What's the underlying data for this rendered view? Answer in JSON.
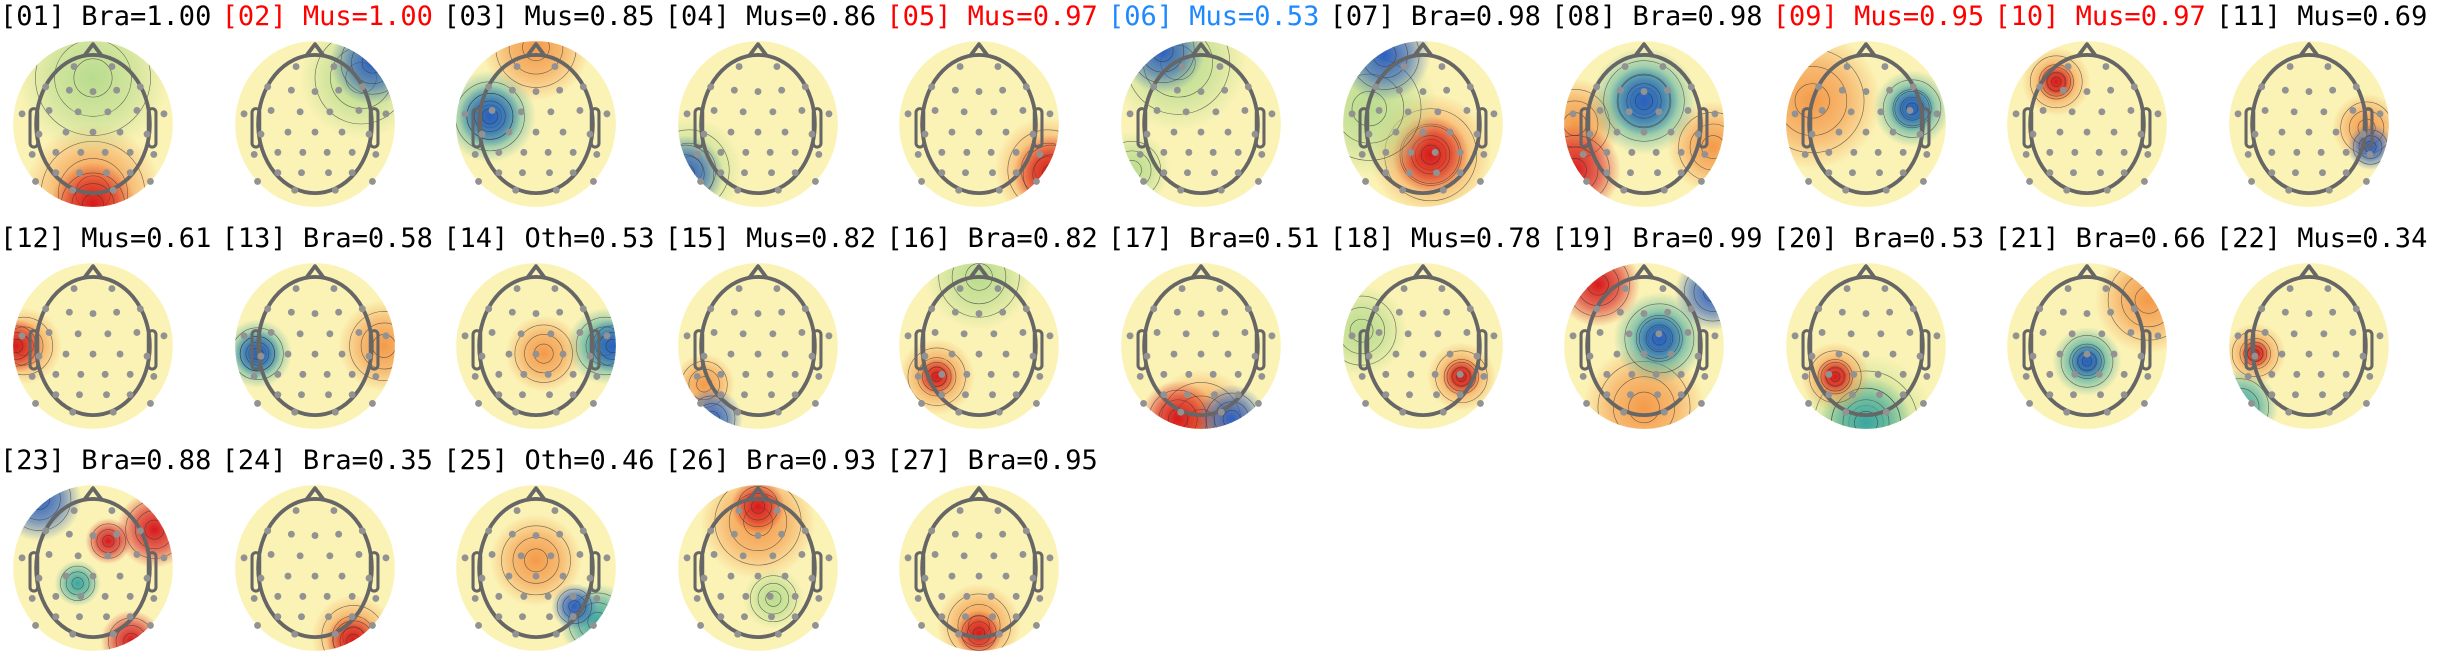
{
  "default_color": "#000000",
  "components": [
    {
      "label": "[01] Bra=1.00",
      "color": "#000000"
    },
    {
      "label": "[02] Mus=1.00",
      "color": "#ff0000"
    },
    {
      "label": "[03] Mus=0.85",
      "color": "#000000"
    },
    {
      "label": "[04] Mus=0.86",
      "color": "#000000"
    },
    {
      "label": "[05] Mus=0.97",
      "color": "#ff0000"
    },
    {
      "label": "[06] Mus=0.53",
      "color": "#1e88ff"
    },
    {
      "label": "[07] Bra=0.98",
      "color": "#000000"
    },
    {
      "label": "[08] Bra=0.98",
      "color": "#000000"
    },
    {
      "label": "[09] Mus=0.95",
      "color": "#ff0000"
    },
    {
      "label": "[10] Mus=0.97",
      "color": "#ff0000"
    },
    {
      "label": "[11] Mus=0.69",
      "color": "#000000"
    },
    {
      "label": "[12] Mus=0.61",
      "color": "#000000"
    },
    {
      "label": "[13] Bra=0.58",
      "color": "#000000"
    },
    {
      "label": "[14] Oth=0.53",
      "color": "#000000"
    },
    {
      "label": "[15] Mus=0.82",
      "color": "#000000"
    },
    {
      "label": "[16] Bra=0.82",
      "color": "#000000"
    },
    {
      "label": "[17] Bra=0.51",
      "color": "#000000"
    },
    {
      "label": "[18] Mus=0.78",
      "color": "#000000"
    },
    {
      "label": "[19] Bra=0.99",
      "color": "#000000"
    },
    {
      "label": "[20] Bra=0.53",
      "color": "#000000"
    },
    {
      "label": "[21] Bra=0.66",
      "color": "#000000"
    },
    {
      "label": "[22] Mus=0.34",
      "color": "#000000"
    },
    {
      "label": "[23] Bra=0.88",
      "color": "#000000"
    },
    {
      "label": "[24] Bra=0.35",
      "color": "#000000"
    },
    {
      "label": "[25] Oth=0.46",
      "color": "#000000"
    },
    {
      "label": "[26] Bra=0.93",
      "color": "#000000"
    },
    {
      "label": "[27] Bra=0.95",
      "color": "#000000"
    }
  ]
}
